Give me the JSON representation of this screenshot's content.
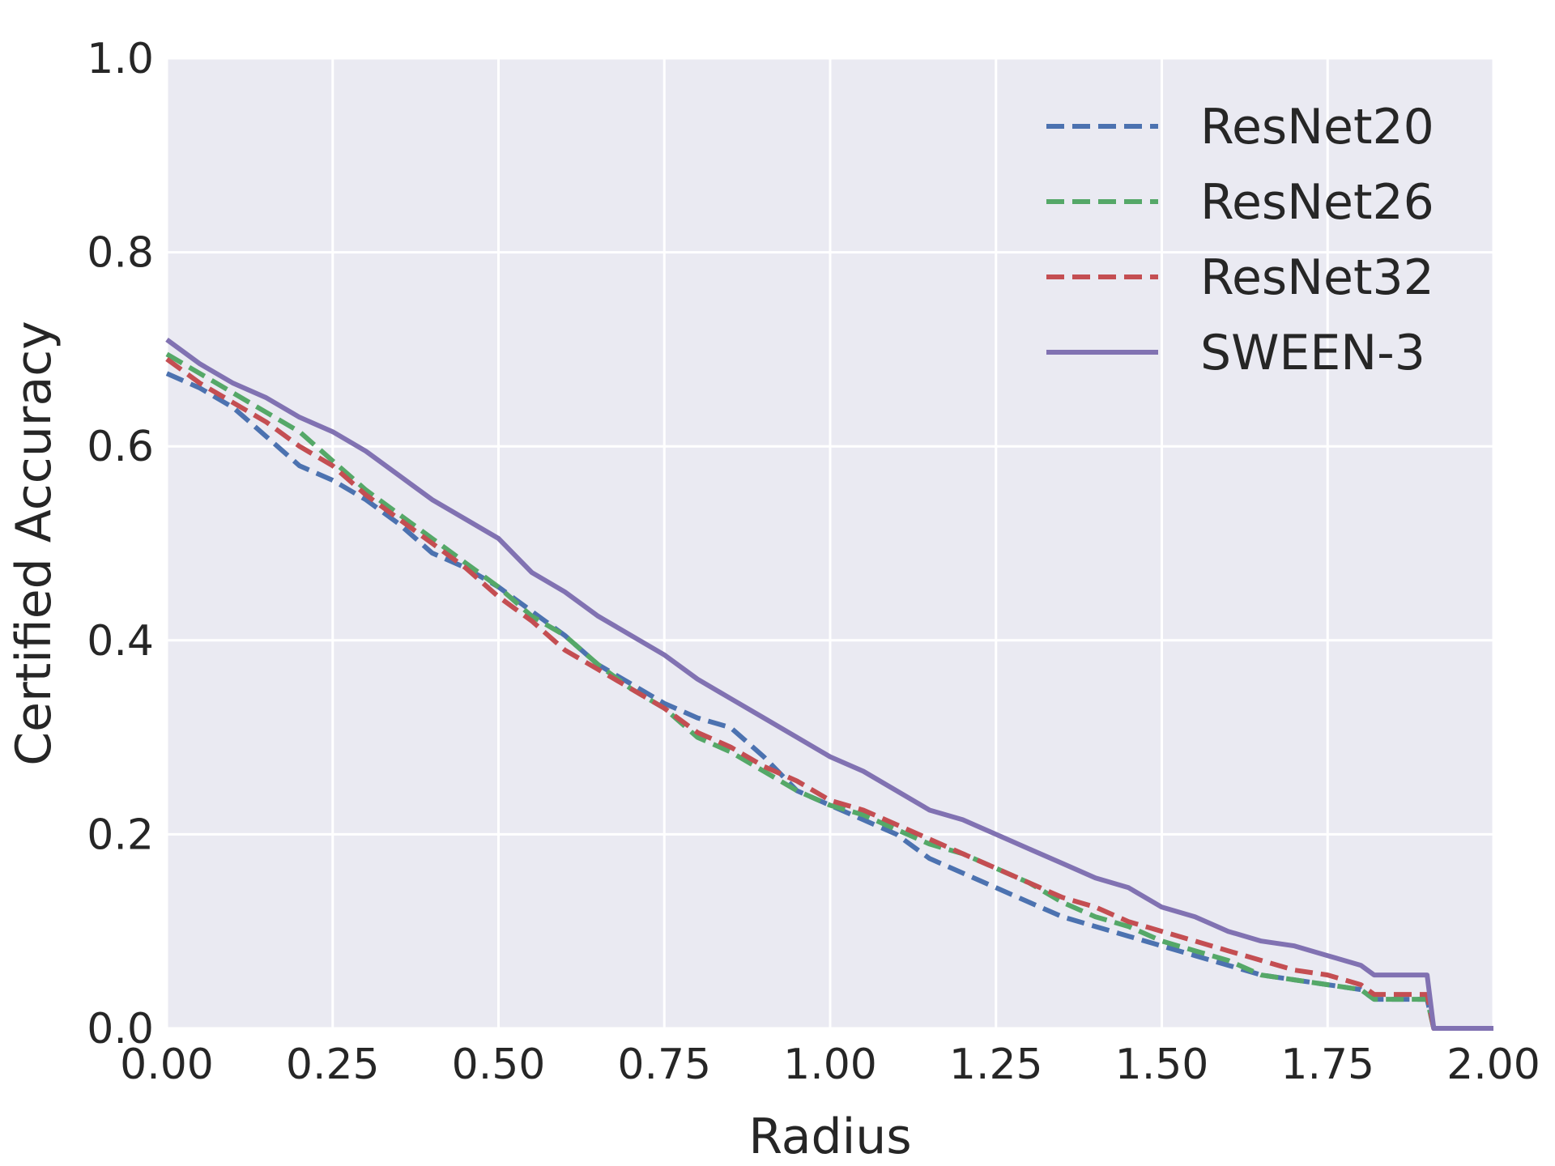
{
  "chart_data": {
    "type": "line",
    "title": "",
    "xlabel": "Radius",
    "ylabel": "Certified Accuracy",
    "xlim": [
      0,
      2
    ],
    "ylim": [
      0,
      1
    ],
    "grid": true,
    "legend_position": "top-right",
    "xticks": [
      "0.00",
      "0.25",
      "0.50",
      "0.75",
      "1.00",
      "1.25",
      "1.50",
      "1.75",
      "2.00"
    ],
    "yticks": [
      "0.0",
      "0.2",
      "0.4",
      "0.6",
      "0.8",
      "1.0"
    ],
    "colors": {
      "background": "#eaeaf2",
      "grid": "#ffffff",
      "text": "#262626"
    },
    "series": [
      {
        "name": "ResNet20",
        "color": "#4c72b0",
        "style": "dashed",
        "x": [
          0,
          0.05,
          0.1,
          0.15,
          0.2,
          0.25,
          0.3,
          0.35,
          0.4,
          0.45,
          0.5,
          0.55,
          0.6,
          0.65,
          0.7,
          0.75,
          0.8,
          0.85,
          0.9,
          0.95,
          1.0,
          1.05,
          1.1,
          1.15,
          1.2,
          1.25,
          1.3,
          1.35,
          1.4,
          1.45,
          1.5,
          1.55,
          1.6,
          1.65,
          1.7,
          1.75,
          1.8,
          1.82,
          1.9,
          1.91,
          2.0
        ],
        "y": [
          0.675,
          0.66,
          0.64,
          0.61,
          0.58,
          0.565,
          0.545,
          0.52,
          0.49,
          0.475,
          0.455,
          0.43,
          0.405,
          0.375,
          0.355,
          0.335,
          0.32,
          0.31,
          0.28,
          0.245,
          0.23,
          0.215,
          0.2,
          0.175,
          0.16,
          0.145,
          0.13,
          0.115,
          0.105,
          0.095,
          0.085,
          0.075,
          0.065,
          0.055,
          0.05,
          0.045,
          0.04,
          0.03,
          0.03,
          0.0,
          0.0
        ]
      },
      {
        "name": "ResNet26",
        "color": "#55a868",
        "style": "dashed",
        "x": [
          0,
          0.05,
          0.1,
          0.15,
          0.2,
          0.25,
          0.3,
          0.35,
          0.4,
          0.45,
          0.5,
          0.55,
          0.6,
          0.65,
          0.7,
          0.75,
          0.8,
          0.85,
          0.9,
          0.95,
          1.0,
          1.05,
          1.1,
          1.15,
          1.2,
          1.25,
          1.3,
          1.35,
          1.4,
          1.45,
          1.5,
          1.55,
          1.6,
          1.65,
          1.7,
          1.75,
          1.8,
          1.82,
          1.9,
          1.91,
          2.0
        ],
        "y": [
          0.695,
          0.675,
          0.655,
          0.635,
          0.615,
          0.585,
          0.555,
          0.53,
          0.505,
          0.48,
          0.455,
          0.425,
          0.405,
          0.375,
          0.35,
          0.33,
          0.3,
          0.285,
          0.265,
          0.245,
          0.23,
          0.22,
          0.205,
          0.19,
          0.18,
          0.165,
          0.15,
          0.13,
          0.115,
          0.105,
          0.09,
          0.08,
          0.07,
          0.055,
          0.05,
          0.045,
          0.04,
          0.03,
          0.03,
          0.0,
          0.0
        ]
      },
      {
        "name": "ResNet32",
        "color": "#c44e52",
        "style": "dashed",
        "x": [
          0,
          0.05,
          0.1,
          0.15,
          0.2,
          0.25,
          0.3,
          0.35,
          0.4,
          0.45,
          0.5,
          0.55,
          0.6,
          0.65,
          0.7,
          0.75,
          0.8,
          0.85,
          0.9,
          0.95,
          1.0,
          1.05,
          1.1,
          1.15,
          1.2,
          1.25,
          1.3,
          1.35,
          1.4,
          1.45,
          1.5,
          1.55,
          1.6,
          1.65,
          1.7,
          1.75,
          1.8,
          1.82,
          1.9,
          1.91,
          2.0
        ],
        "y": [
          0.69,
          0.665,
          0.645,
          0.625,
          0.6,
          0.58,
          0.55,
          0.525,
          0.5,
          0.475,
          0.445,
          0.42,
          0.39,
          0.37,
          0.35,
          0.33,
          0.305,
          0.29,
          0.27,
          0.255,
          0.235,
          0.225,
          0.21,
          0.195,
          0.18,
          0.165,
          0.15,
          0.135,
          0.125,
          0.11,
          0.1,
          0.09,
          0.08,
          0.07,
          0.06,
          0.055,
          0.045,
          0.035,
          0.035,
          0.0,
          0.0
        ]
      },
      {
        "name": "SWEEN-3",
        "color": "#8172b2",
        "style": "solid",
        "x": [
          0,
          0.05,
          0.1,
          0.15,
          0.2,
          0.25,
          0.3,
          0.35,
          0.4,
          0.45,
          0.5,
          0.55,
          0.6,
          0.65,
          0.7,
          0.75,
          0.8,
          0.85,
          0.9,
          0.95,
          1.0,
          1.05,
          1.1,
          1.15,
          1.2,
          1.25,
          1.3,
          1.35,
          1.4,
          1.45,
          1.5,
          1.55,
          1.6,
          1.65,
          1.7,
          1.75,
          1.8,
          1.82,
          1.9,
          1.91,
          2.0
        ],
        "y": [
          0.71,
          0.685,
          0.665,
          0.65,
          0.63,
          0.615,
          0.595,
          0.57,
          0.545,
          0.525,
          0.505,
          0.47,
          0.45,
          0.425,
          0.405,
          0.385,
          0.36,
          0.34,
          0.32,
          0.3,
          0.28,
          0.265,
          0.245,
          0.225,
          0.215,
          0.2,
          0.185,
          0.17,
          0.155,
          0.145,
          0.125,
          0.115,
          0.1,
          0.09,
          0.085,
          0.075,
          0.065,
          0.055,
          0.055,
          0.0,
          0.0
        ]
      }
    ]
  }
}
